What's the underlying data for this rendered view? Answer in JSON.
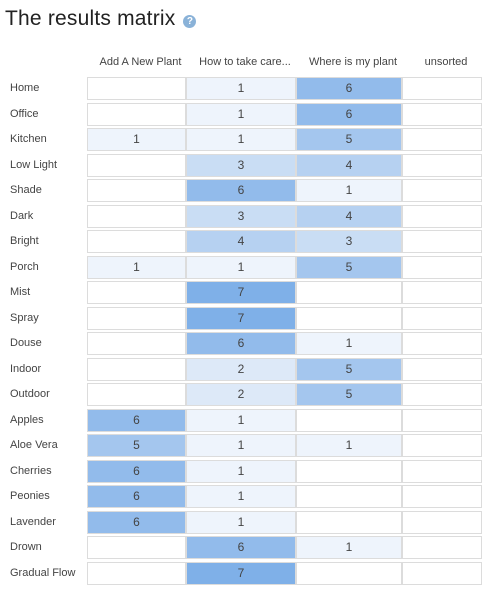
{
  "title": "The results matrix",
  "help_symbol": "?",
  "columns": [
    "Add A New Plant",
    "How to take care...",
    "Where is my plant",
    "unsorted"
  ],
  "rows": [
    {
      "label": "Home",
      "values": [
        null,
        1,
        6,
        null
      ]
    },
    {
      "label": "Office",
      "values": [
        null,
        1,
        6,
        null
      ]
    },
    {
      "label": "Kitchen",
      "values": [
        1,
        1,
        5,
        null
      ]
    },
    {
      "label": "Low Light",
      "values": [
        null,
        3,
        4,
        null
      ]
    },
    {
      "label": "Shade",
      "values": [
        null,
        6,
        1,
        null
      ]
    },
    {
      "label": "Dark",
      "values": [
        null,
        3,
        4,
        null
      ]
    },
    {
      "label": "Bright",
      "values": [
        null,
        4,
        3,
        null
      ]
    },
    {
      "label": "Porch",
      "values": [
        1,
        1,
        5,
        null
      ]
    },
    {
      "label": "Mist",
      "values": [
        null,
        7,
        null,
        null
      ]
    },
    {
      "label": "Spray",
      "values": [
        null,
        7,
        null,
        null
      ]
    },
    {
      "label": "Douse",
      "values": [
        null,
        6,
        1,
        null
      ]
    },
    {
      "label": "Indoor",
      "values": [
        null,
        2,
        5,
        null
      ]
    },
    {
      "label": "Outdoor",
      "values": [
        null,
        2,
        5,
        null
      ]
    },
    {
      "label": "Apples",
      "values": [
        6,
        1,
        null,
        null
      ]
    },
    {
      "label": "Aloe Vera",
      "values": [
        5,
        1,
        1,
        null
      ]
    },
    {
      "label": "Cherries",
      "values": [
        6,
        1,
        null,
        null
      ]
    },
    {
      "label": "Peonies",
      "values": [
        6,
        1,
        null,
        null
      ]
    },
    {
      "label": "Lavender",
      "values": [
        6,
        1,
        null,
        null
      ]
    },
    {
      "label": "Drown",
      "values": [
        null,
        6,
        1,
        null
      ]
    },
    {
      "label": "Gradual Flow",
      "values": [
        null,
        7,
        null,
        null
      ]
    }
  ],
  "colors": {
    "1": "#eef4fc",
    "2": "#dde9f8",
    "3": "#c9ddf4",
    "4": "#b6d1f1",
    "5": "#a4c6ee",
    "6": "#92bbeb",
    "7": "#7fb0e8"
  }
}
